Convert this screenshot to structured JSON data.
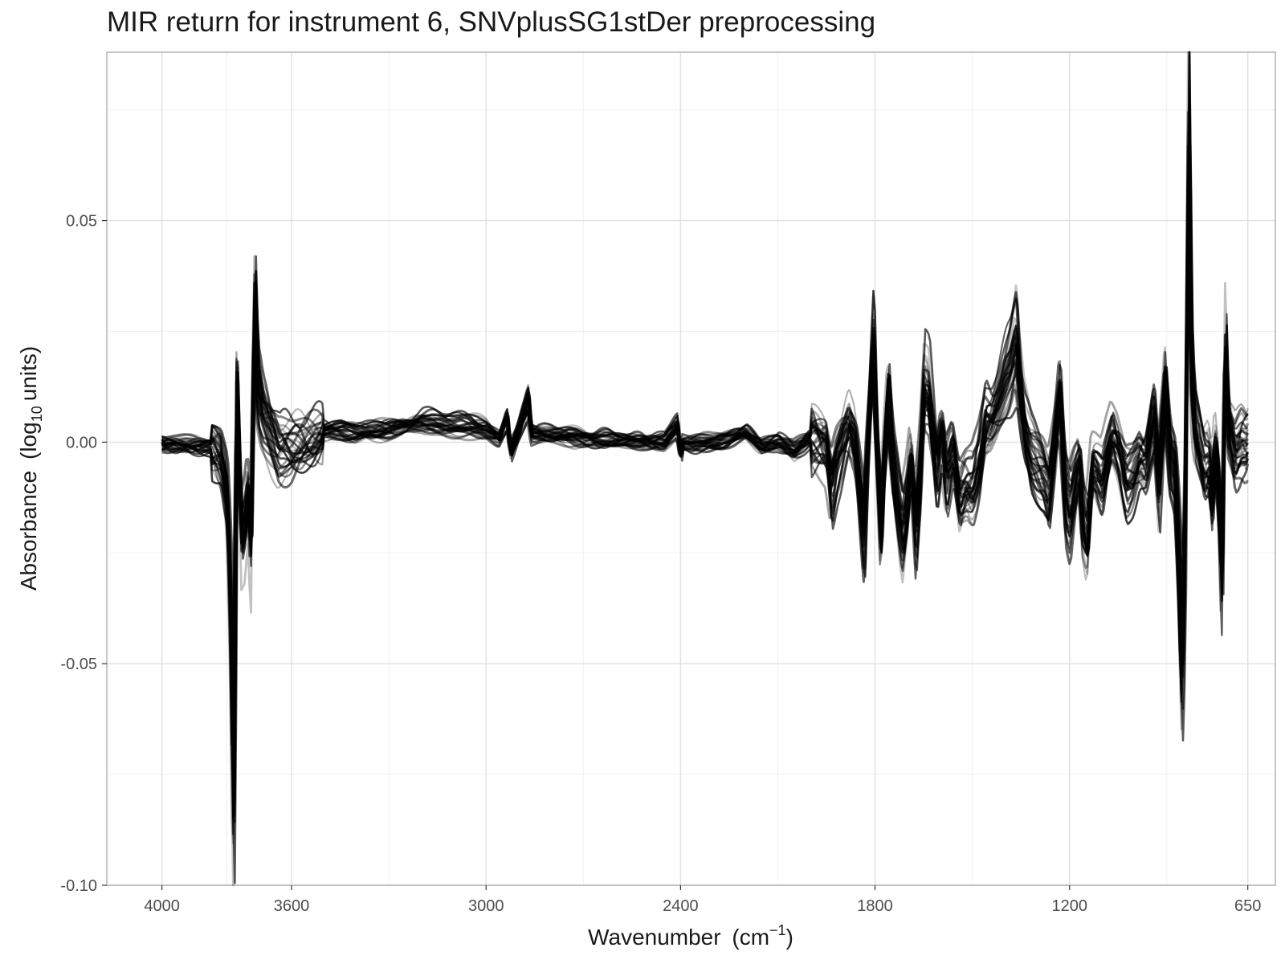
{
  "chart_data": {
    "type": "line",
    "title": "MIR return for instrument 6, SNVplusSG1stDer preprocessing",
    "xlabel": {
      "main": "Wavenumber",
      "unit_base": "cm",
      "unit_exp": "−1"
    },
    "ylabel": {
      "main": "Absorbance",
      "unit_log": "log",
      "unit_base": "10",
      "unit_rest": "units"
    },
    "x_reversed": true,
    "xlim": [
      4170,
      565
    ],
    "ylim": [
      -0.1,
      0.088
    ],
    "x_ticks": [
      4000,
      3600,
      3000,
      2400,
      1800,
      1200,
      650
    ],
    "x_tick_labels": [
      "4000",
      "3600",
      "3000",
      "2400",
      "1800",
      "1200",
      "650"
    ],
    "x_minor_ticks": [
      3800,
      3300,
      2700,
      2100,
      1500,
      900
    ],
    "y_ticks": [
      -0.1,
      -0.05,
      0,
      0.05
    ],
    "y_tick_labels": [
      "-0.10",
      "-0.05",
      "0.00",
      "0.05"
    ],
    "y_minor_ticks": [
      -0.075,
      -0.025,
      0.025,
      0.075
    ],
    "grid": true,
    "legend": "none",
    "line_color": "#000000",
    "series_count": 30,
    "series_spec": {
      "x_start": 4000,
      "x_end": 650,
      "x_step": 5,
      "base_profile": [
        [
          4000,
          -0.0005
        ],
        [
          3900,
          -0.0005
        ],
        [
          3850,
          -0.001
        ],
        [
          3820,
          -0.004
        ],
        [
          3800,
          -0.012
        ],
        [
          3790,
          -0.035
        ],
        [
          3780,
          -0.08
        ],
        [
          3775,
          -0.055
        ],
        [
          3770,
          0.016
        ],
        [
          3765,
          0.005
        ],
        [
          3755,
          -0.022
        ],
        [
          3745,
          -0.02
        ],
        [
          3735,
          -0.012
        ],
        [
          3725,
          -0.026
        ],
        [
          3715,
          0.032
        ],
        [
          3705,
          0.012
        ],
        [
          3690,
          0.006
        ],
        [
          3670,
          0.003
        ],
        [
          3640,
          -0.002
        ],
        [
          3600,
          -0.002
        ],
        [
          3550,
          0.001
        ],
        [
          3500,
          0.003
        ],
        [
          3450,
          0.003
        ],
        [
          3400,
          0.002
        ],
        [
          3300,
          0.003
        ],
        [
          3200,
          0.005
        ],
        [
          3100,
          0.004
        ],
        [
          3000,
          0.003
        ],
        [
          2960,
          0.001
        ],
        [
          2935,
          0.006
        ],
        [
          2925,
          -0.002
        ],
        [
          2900,
          0.003
        ],
        [
          2870,
          0.01
        ],
        [
          2860,
          0.002
        ],
        [
          2800,
          0.002
        ],
        [
          2700,
          0.001
        ],
        [
          2600,
          0.0005
        ],
        [
          2500,
          0.0
        ],
        [
          2450,
          0.0
        ],
        [
          2410,
          0.004
        ],
        [
          2400,
          -0.003
        ],
        [
          2395,
          0.0
        ],
        [
          2300,
          0.0
        ],
        [
          2200,
          0.002
        ],
        [
          2150,
          -0.001
        ],
        [
          2100,
          0.0
        ],
        [
          2050,
          -0.002
        ],
        [
          2000,
          0.001
        ],
        [
          1950,
          -0.002
        ],
        [
          1935,
          -0.012
        ],
        [
          1920,
          -0.006
        ],
        [
          1900,
          -0.001
        ],
        [
          1880,
          0.003
        ],
        [
          1860,
          -0.002
        ],
        [
          1835,
          -0.022
        ],
        [
          1825,
          -0.002
        ],
        [
          1805,
          0.025
        ],
        [
          1795,
          0.0
        ],
        [
          1782,
          -0.02
        ],
        [
          1770,
          0.0
        ],
        [
          1760,
          0.013
        ],
        [
          1745,
          -0.004
        ],
        [
          1725,
          -0.015
        ],
        [
          1715,
          -0.02
        ],
        [
          1700,
          -0.012
        ],
        [
          1690,
          -0.003
        ],
        [
          1675,
          -0.02
        ],
        [
          1660,
          -0.005
        ],
        [
          1650,
          0.012
        ],
        [
          1635,
          0.01
        ],
        [
          1610,
          -0.008
        ],
        [
          1595,
          0.0
        ],
        [
          1580,
          -0.01
        ],
        [
          1560,
          -0.004
        ],
        [
          1540,
          -0.015
        ],
        [
          1520,
          -0.012
        ],
        [
          1500,
          -0.012
        ],
        [
          1480,
          -0.006
        ],
        [
          1460,
          0.005
        ],
        [
          1440,
          0.006
        ],
        [
          1420,
          0.01
        ],
        [
          1400,
          0.015
        ],
        [
          1385,
          0.018
        ],
        [
          1365,
          0.025
        ],
        [
          1355,
          0.015
        ],
        [
          1340,
          0.005
        ],
        [
          1320,
          -0.002
        ],
        [
          1300,
          -0.005
        ],
        [
          1280,
          -0.008
        ],
        [
          1265,
          -0.012
        ],
        [
          1250,
          -0.003
        ],
        [
          1230,
          0.012
        ],
        [
          1215,
          -0.012
        ],
        [
          1200,
          -0.017
        ],
        [
          1185,
          -0.01
        ],
        [
          1170,
          -0.005
        ],
        [
          1160,
          -0.018
        ],
        [
          1145,
          -0.022
        ],
        [
          1130,
          -0.005
        ],
        [
          1120,
          -0.006
        ],
        [
          1100,
          -0.01
        ],
        [
          1085,
          -0.005
        ],
        [
          1070,
          0.0
        ],
        [
          1050,
          -0.003
        ],
        [
          1025,
          -0.01
        ],
        [
          1005,
          -0.008
        ],
        [
          985,
          -0.004
        ],
        [
          965,
          -0.006
        ],
        [
          940,
          0.005
        ],
        [
          925,
          -0.01
        ],
        [
          905,
          0.014
        ],
        [
          890,
          -0.003
        ],
        [
          875,
          -0.007
        ],
        [
          865,
          -0.025
        ],
        [
          855,
          -0.05
        ],
        [
          845,
          -0.03
        ],
        [
          840,
          0.015
        ],
        [
          832,
          0.075
        ],
        [
          825,
          0.02
        ],
        [
          815,
          0.005
        ],
        [
          800,
          0.0
        ],
        [
          785,
          -0.005
        ],
        [
          770,
          -0.004
        ],
        [
          760,
          -0.012
        ],
        [
          750,
          0.0
        ],
        [
          740,
          -0.01
        ],
        [
          730,
          -0.032
        ],
        [
          720,
          0.024
        ],
        [
          710,
          0.005
        ],
        [
          690,
          -0.002
        ],
        [
          670,
          0.0
        ],
        [
          655,
          -0.001
        ],
        [
          650,
          0.0
        ]
      ],
      "notes_hidden": false
    }
  }
}
